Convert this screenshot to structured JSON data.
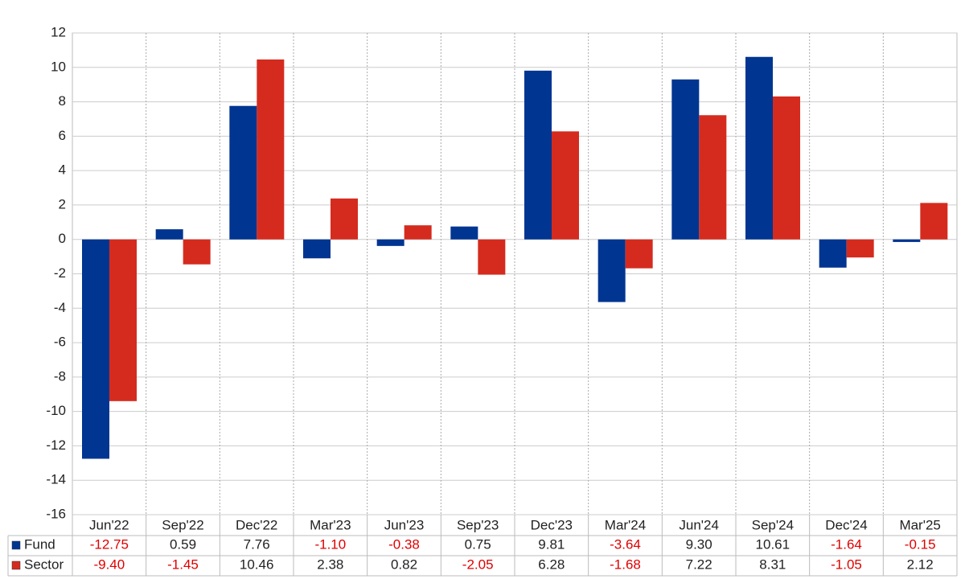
{
  "chart_data": {
    "type": "bar",
    "categories": [
      "Jun'22",
      "Sep'22",
      "Dec'22",
      "Mar'23",
      "Jun'23",
      "Sep'23",
      "Dec'23",
      "Mar'24",
      "Jun'24",
      "Sep'24",
      "Dec'24",
      "Mar'25"
    ],
    "series": [
      {
        "name": "Fund",
        "color": "#003591",
        "values": [
          -12.75,
          0.59,
          7.76,
          -1.1,
          -0.38,
          0.75,
          9.81,
          -3.64,
          9.3,
          10.61,
          -1.64,
          -0.15
        ],
        "value_labels": [
          "-12.75",
          "0.59",
          "7.76",
          "-1.10",
          "-0.38",
          "0.75",
          "9.81",
          "-3.64",
          "9.30",
          "10.61",
          "-1.64",
          "-0.15"
        ]
      },
      {
        "name": "Sector",
        "color": "#d52b1e",
        "values": [
          -9.4,
          -1.45,
          10.46,
          2.38,
          0.82,
          -2.05,
          6.28,
          -1.68,
          7.22,
          8.31,
          -1.05,
          2.12
        ],
        "value_labels": [
          "-9.40",
          "-1.45",
          "10.46",
          "2.38",
          "0.82",
          "-2.05",
          "6.28",
          "-1.68",
          "7.22",
          "8.31",
          "-1.05",
          "2.12"
        ]
      }
    ],
    "ylim": [
      -16,
      12
    ],
    "yticks": [
      -16,
      -14,
      -12,
      -10,
      -8,
      -6,
      -4,
      -2,
      0,
      2,
      4,
      6,
      8,
      10,
      12
    ],
    "grid": true
  }
}
